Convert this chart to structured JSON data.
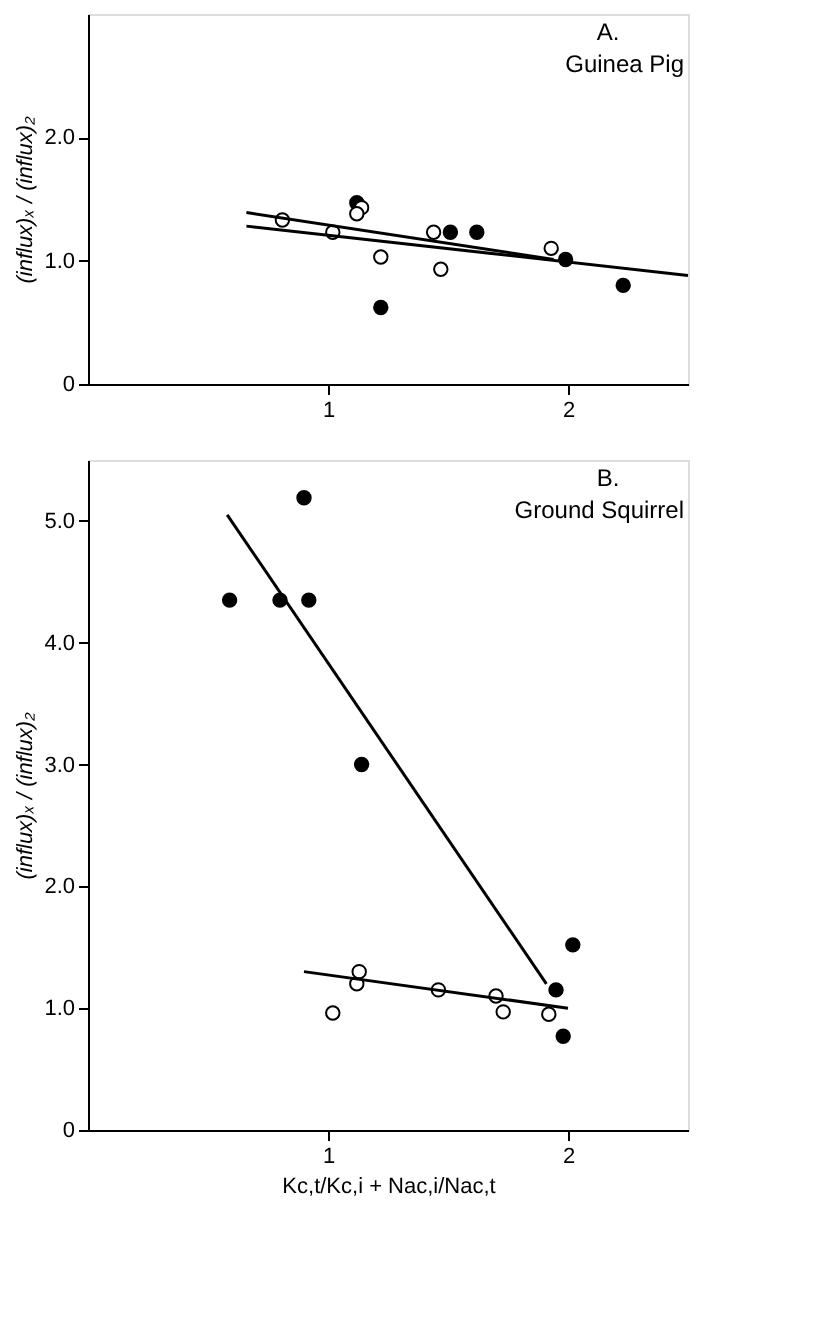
{
  "chart_data": [
    {
      "type": "scatter",
      "title": "A.",
      "subtitle": "Guinea Pig",
      "ylabel": "(influx)ₓ / (influx)₂",
      "xlim": [
        0,
        2.5
      ],
      "xticks": [
        1,
        2
      ],
      "ylim": [
        0,
        3
      ],
      "yticks": [
        0,
        {
          "value": 1,
          "label": "1.0"
        },
        {
          "value": 2,
          "label": "2.0"
        }
      ],
      "grid": false,
      "marker": "circle",
      "series": [
        {
          "color": "#000000",
          "x": [
            1.12,
            1.51,
            1.62,
            1.22,
            1.99,
            2.23
          ],
          "values": [
            1.47,
            1.23,
            1.23,
            0.62,
            1.01,
            0.8
          ]
        },
        {
          "color": "#ffffff",
          "x": [
            0.81,
            1.02,
            1.14,
            1.12,
            1.22,
            1.44,
            1.47,
            1.93
          ],
          "values": [
            1.33,
            1.23,
            1.43,
            1.38,
            1.03,
            1.23,
            0.93,
            1.1
          ]
        },
        {
          "type": "line",
          "marker": "none",
          "line_style": "solid",
          "color": "#000000",
          "x": [
            0.66,
            1.94
          ],
          "values": [
            1.39,
            1.01
          ]
        },
        {
          "type": "line",
          "marker": "none",
          "line_style": "solid",
          "color": "#000000",
          "x": [
            0.66,
            2.5
          ],
          "values": [
            1.28,
            0.88
          ]
        }
      ]
    },
    {
      "type": "scatter",
      "title": "B.",
      "subtitle": "Ground Squirrel",
      "xlabel": "Kc,t/Kc,i + Nac,i/Nac,t",
      "ylabel": "(influx)ₓ / (influx)₂",
      "xlim": [
        0,
        2.5
      ],
      "xticks": [
        1,
        2
      ],
      "ylim": [
        0,
        5.5
      ],
      "yticks": [
        0,
        {
          "value": 1,
          "label": "1.0"
        },
        {
          "value": 2,
          "label": "2.0"
        },
        {
          "value": 3,
          "label": "3.0"
        },
        {
          "value": 4,
          "label": "4.0"
        },
        {
          "value": 5,
          "label": "5.0"
        }
      ],
      "grid": false,
      "marker": "circle",
      "series": [
        {
          "color": "#000000",
          "x": [
            0.59,
            0.8,
            0.92,
            0.9,
            1.14,
            1.95,
            2.02,
            1.98
          ],
          "values": [
            4.35,
            4.35,
            4.35,
            5.19,
            3.0,
            1.15,
            1.52,
            0.77
          ]
        },
        {
          "color": "#ffffff",
          "x": [
            1.02,
            1.12,
            1.13,
            1.46,
            1.7,
            1.73,
            1.92
          ],
          "values": [
            0.96,
            1.2,
            1.3,
            1.15,
            1.1,
            0.97,
            0.95
          ]
        },
        {
          "type": "line",
          "marker": "none",
          "line_style": "solid",
          "color": "#000000",
          "x": [
            0.58,
            1.91
          ],
          "values": [
            5.05,
            1.2
          ]
        },
        {
          "type": "line",
          "marker": "none",
          "line_style": "solid",
          "color": "#000000",
          "x": [
            0.9,
            2.0
          ],
          "values": [
            1.3,
            1.0
          ]
        }
      ]
    }
  ]
}
